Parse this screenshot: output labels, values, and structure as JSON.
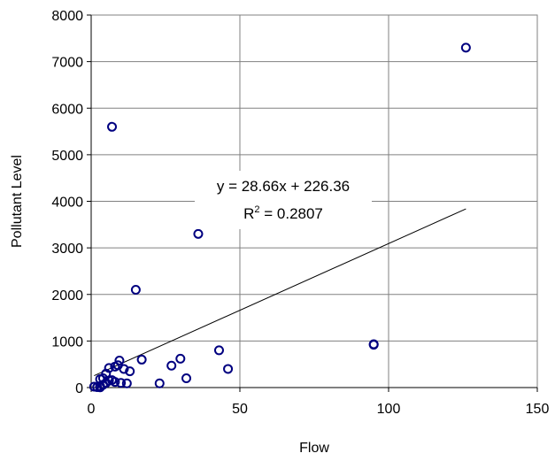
{
  "chart_data": {
    "type": "scatter",
    "title": "",
    "xlabel": "Flow",
    "ylabel": "Pollutant Level",
    "xlim": [
      0,
      150
    ],
    "ylim": [
      0,
      8000
    ],
    "x_ticks": [
      0,
      50,
      100,
      150
    ],
    "y_ticks": [
      0,
      1000,
      2000,
      3000,
      4000,
      5000,
      6000,
      7000,
      8000
    ],
    "grid": true,
    "legend": "none",
    "marker_color": "#000080",
    "series": [
      {
        "points": [
          [
            126,
            7300
          ],
          [
            7,
            5600
          ],
          [
            36,
            3300
          ],
          [
            15,
            2100
          ],
          [
            95,
            930
          ],
          [
            95,
            920
          ],
          [
            43,
            800
          ],
          [
            30,
            620
          ],
          [
            17,
            600
          ],
          [
            27,
            470
          ],
          [
            46,
            400
          ],
          [
            9.5,
            580
          ],
          [
            9,
            480
          ],
          [
            8,
            450
          ],
          [
            11,
            400
          ],
          [
            6,
            420
          ],
          [
            13,
            350
          ],
          [
            5,
            300
          ],
          [
            4,
            200
          ],
          [
            3,
            180
          ],
          [
            6,
            150
          ],
          [
            7,
            160
          ],
          [
            8,
            120
          ],
          [
            10,
            100
          ],
          [
            12,
            90
          ],
          [
            23,
            90
          ],
          [
            32,
            200
          ],
          [
            5,
            100
          ],
          [
            4,
            60
          ],
          [
            3,
            30
          ],
          [
            1,
            20
          ],
          [
            2,
            10
          ],
          [
            3,
            5
          ]
        ]
      }
    ],
    "trendline": {
      "slope": 28.66,
      "intercept": 226.36,
      "x_range": [
        1,
        126
      ],
      "equation_text": "y = 28.66x + 226.36",
      "r2_prefix": "R",
      "r2_sup": "2",
      "r2_suffix": " = 0.2807"
    }
  }
}
